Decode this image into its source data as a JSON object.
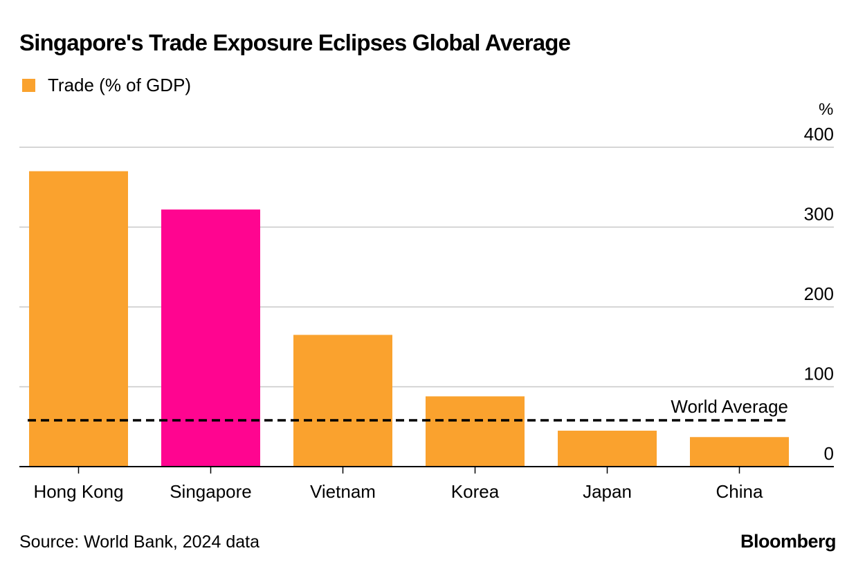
{
  "chart_data": {
    "type": "bar",
    "title": "Singapore's Trade Exposure Eclipses Global Average",
    "legend": [
      {
        "label": "Trade (% of GDP)",
        "color": "#FAA22E"
      }
    ],
    "unit_label": "%",
    "categories": [
      "Hong Kong",
      "Singapore",
      "Vietnam",
      "Korea",
      "Japan",
      "China"
    ],
    "series": [
      {
        "name": "Trade (% of GDP)",
        "values": [
          370,
          322,
          165,
          88,
          45,
          37
        ],
        "colors": [
          "#FAA22E",
          "#FF0590",
          "#FAA22E",
          "#FAA22E",
          "#FAA22E",
          "#FAA22E"
        ]
      }
    ],
    "reference_line": {
      "label": "World Average",
      "value": 58
    },
    "ylim": [
      0,
      400
    ],
    "yticks": [
      {
        "value": 400,
        "label": "400"
      },
      {
        "value": 300,
        "label": "300"
      },
      {
        "value": 200,
        "label": "200"
      },
      {
        "value": 100,
        "label": "100"
      },
      {
        "value": 0,
        "label": "0"
      }
    ],
    "y_axis_position": "right",
    "xlabel": "",
    "ylabel": "",
    "grid": true
  },
  "footer": {
    "source": "Source: World Bank, 2024 data",
    "brand": "Bloomberg"
  },
  "colors": {
    "default_bar": "#FAA22E",
    "highlight_bar": "#FF0590",
    "grid": "#C8C8C8",
    "axis": "#000000"
  }
}
